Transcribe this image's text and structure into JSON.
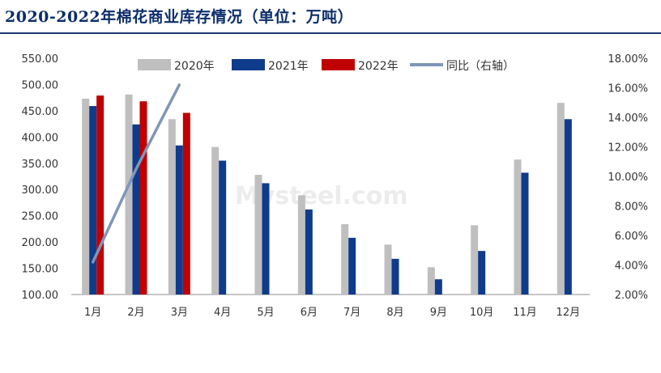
{
  "title": "2020-2022年棉花商业库存情况（单位：万吨）",
  "watermark": "Mysteel.com",
  "chart_data": {
    "type": "bar",
    "title": "2020-2022年棉花商业库存情况（单位：万吨）",
    "categories": [
      "1月",
      "2月",
      "3月",
      "4月",
      "5月",
      "6月",
      "7月",
      "8月",
      "9月",
      "10月",
      "11月",
      "12月"
    ],
    "series": [
      {
        "name": "2020年",
        "type": "bar",
        "color": "#bfbfbf",
        "values": [
          473,
          481,
          434,
          381,
          328,
          289,
          234,
          195,
          152,
          232,
          357,
          465
        ]
      },
      {
        "name": "2021年",
        "type": "bar",
        "color": "#0f3b8c",
        "values": [
          459,
          424,
          384,
          355,
          312,
          262,
          208,
          168,
          129,
          183,
          332,
          434
        ]
      },
      {
        "name": "2022年",
        "type": "bar",
        "color": "#c00000",
        "values": [
          479,
          468,
          446,
          null,
          null,
          null,
          null,
          null,
          null,
          null,
          null,
          null
        ]
      },
      {
        "name": "同比（右轴）",
        "type": "line",
        "axis": "right",
        "color": "#8096b8",
        "values": [
          4.2,
          10.5,
          16.2,
          null,
          null,
          null,
          null,
          null,
          null,
          null,
          null,
          null
        ]
      }
    ],
    "y_left": {
      "min": 100,
      "max": 550,
      "step": 50,
      "ticks": [
        "100.00",
        "150.00",
        "200.00",
        "250.00",
        "300.00",
        "350.00",
        "400.00",
        "450.00",
        "500.00",
        "550.00"
      ]
    },
    "y_right": {
      "min": 2,
      "max": 18,
      "step": 2,
      "ticks": [
        "2.00%",
        "4.00%",
        "6.00%",
        "8.00%",
        "10.00%",
        "12.00%",
        "14.00%",
        "16.00%",
        "18.00%"
      ]
    },
    "grid": false,
    "legend_position": "top"
  }
}
